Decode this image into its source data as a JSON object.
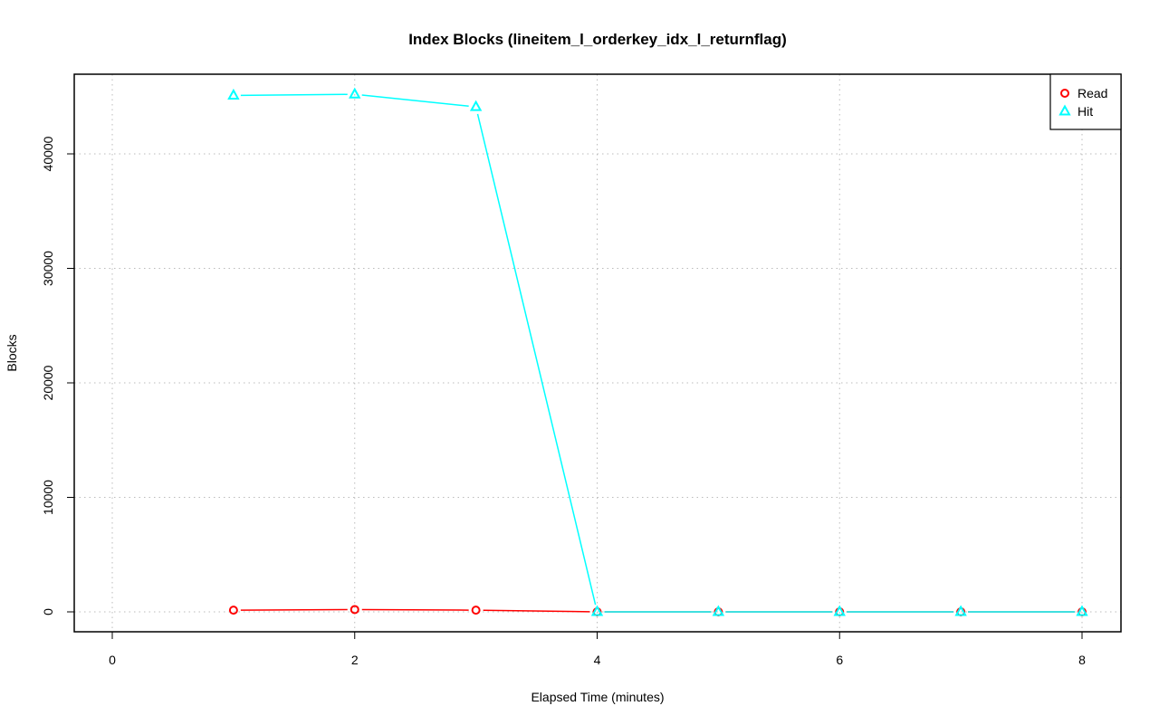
{
  "chart_data": {
    "type": "line",
    "title": "Index Blocks (lineitem_l_orderkey_idx_l_returnflag)",
    "xlabel": "Elapsed Time (minutes)",
    "ylabel": "Blocks",
    "xlim": [
      0,
      8
    ],
    "ylim": [
      0,
      45000
    ],
    "xticks": [
      0,
      2,
      4,
      6,
      8
    ],
    "yticks": [
      0,
      10000,
      20000,
      30000,
      40000
    ],
    "grid": true,
    "legend_position": "top-right",
    "x": [
      1,
      2,
      3,
      4,
      5,
      6,
      7,
      8
    ],
    "series": [
      {
        "name": "Read",
        "color": "#ff0000",
        "marker": "circle",
        "values": [
          150,
          200,
          150,
          0,
          0,
          0,
          0,
          0
        ]
      },
      {
        "name": "Hit",
        "color": "#00ffff",
        "marker": "triangle",
        "values": [
          45100,
          45200,
          44100,
          0,
          0,
          0,
          0,
          0
        ]
      }
    ]
  }
}
